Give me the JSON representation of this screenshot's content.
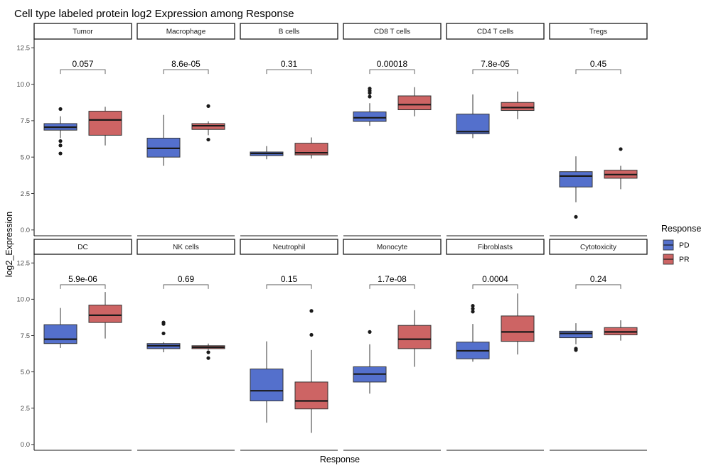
{
  "chart_data": {
    "type": "boxplot",
    "title": "Cell type labeled protein log2 Expression among Response",
    "xlabel": "Response",
    "ylabel": "log2_Expression",
    "ylim": [
      -0.4,
      13.1
    ],
    "yticks": [
      0,
      2.5,
      5,
      7.5,
      10,
      12.5
    ],
    "ytick_labels": [
      "0.0",
      "2.5",
      "5.0",
      "7.5",
      "10.0",
      "12.5"
    ],
    "legend": {
      "title": "Response",
      "position": "right",
      "entries": [
        {
          "name": "PD",
          "color": "#5470cc"
        },
        {
          "name": "PR",
          "color": "#cd6464"
        }
      ]
    },
    "panels": [
      {
        "name": "Tumor",
        "pvalue": "0.057",
        "bracket_y": 11.0,
        "groups": [
          {
            "group": "PD",
            "min": 6.3,
            "q1": 6.85,
            "median": 7.05,
            "q3": 7.3,
            "max": 7.8,
            "outliers": [
              8.3,
              6.1,
              5.8,
              5.25
            ]
          },
          {
            "group": "PR",
            "min": 5.8,
            "q1": 6.5,
            "median": 7.55,
            "q3": 8.15,
            "max": 8.45,
            "outliers": []
          }
        ]
      },
      {
        "name": "Macrophage",
        "pvalue": "8.6e-05",
        "bracket_y": 11.0,
        "groups": [
          {
            "group": "PD",
            "min": 4.4,
            "q1": 5.0,
            "median": 5.6,
            "q3": 6.3,
            "max": 7.9,
            "outliers": []
          },
          {
            "group": "PR",
            "min": 6.5,
            "q1": 6.9,
            "median": 7.15,
            "q3": 7.3,
            "max": 7.45,
            "outliers": [
              8.5,
              6.2
            ]
          }
        ]
      },
      {
        "name": "B cells",
        "pvalue": "0.31",
        "bracket_y": 11.0,
        "groups": [
          {
            "group": "PD",
            "min": 4.85,
            "q1": 5.1,
            "median": 5.25,
            "q3": 5.35,
            "max": 5.75,
            "outliers": []
          },
          {
            "group": "PR",
            "min": 4.9,
            "q1": 5.15,
            "median": 5.3,
            "q3": 5.95,
            "max": 6.35,
            "outliers": []
          }
        ]
      },
      {
        "name": "CD8 T cells",
        "pvalue": "0.00018",
        "bracket_y": 11.0,
        "groups": [
          {
            "group": "PD",
            "min": 7.15,
            "q1": 7.45,
            "median": 7.7,
            "q3": 8.1,
            "max": 8.7,
            "outliers": [
              9.7,
              9.55,
              9.4,
              9.15
            ]
          },
          {
            "group": "PR",
            "min": 7.8,
            "q1": 8.25,
            "median": 8.6,
            "q3": 9.2,
            "max": 9.8,
            "outliers": []
          }
        ]
      },
      {
        "name": "CD4 T cells",
        "pvalue": "7.8e-05",
        "bracket_y": 11.0,
        "groups": [
          {
            "group": "PD",
            "min": 6.3,
            "q1": 6.6,
            "median": 6.75,
            "q3": 7.95,
            "max": 9.3,
            "outliers": []
          },
          {
            "group": "PR",
            "min": 7.6,
            "q1": 8.2,
            "median": 8.4,
            "q3": 8.75,
            "max": 9.5,
            "outliers": []
          }
        ]
      },
      {
        "name": "Tregs",
        "pvalue": "0.45",
        "bracket_y": 11.0,
        "groups": [
          {
            "group": "PD",
            "min": 1.9,
            "q1": 2.95,
            "median": 3.7,
            "q3": 4.0,
            "max": 5.05,
            "outliers": [
              0.9
            ]
          },
          {
            "group": "PR",
            "min": 2.8,
            "q1": 3.55,
            "median": 3.8,
            "q3": 4.1,
            "max": 4.4,
            "outliers": [
              5.55
            ]
          }
        ]
      },
      {
        "name": "DC",
        "pvalue": "5.9e-06",
        "bracket_y": 11.0,
        "groups": [
          {
            "group": "PD",
            "min": 6.65,
            "q1": 6.95,
            "median": 7.25,
            "q3": 8.25,
            "max": 9.4,
            "outliers": []
          },
          {
            "group": "PR",
            "min": 7.3,
            "q1": 8.4,
            "median": 8.9,
            "q3": 9.6,
            "max": 10.5,
            "outliers": []
          }
        ]
      },
      {
        "name": "NK cells",
        "pvalue": "0.69",
        "bracket_y": 11.0,
        "groups": [
          {
            "group": "PD",
            "min": 6.35,
            "q1": 6.6,
            "median": 6.8,
            "q3": 6.95,
            "max": 7.05,
            "outliers": [
              8.4,
              8.3,
              7.65
            ]
          },
          {
            "group": "PR",
            "min": 6.5,
            "q1": 6.6,
            "median": 6.7,
            "q3": 6.8,
            "max": 6.95,
            "outliers": [
              6.35,
              5.95
            ]
          }
        ]
      },
      {
        "name": "Neutrophil",
        "pvalue": "0.15",
        "bracket_y": 11.0,
        "groups": [
          {
            "group": "PD",
            "min": 1.5,
            "q1": 3.0,
            "median": 3.7,
            "q3": 5.2,
            "max": 7.1,
            "outliers": []
          },
          {
            "group": "PR",
            "min": 0.8,
            "q1": 2.45,
            "median": 3.0,
            "q3": 4.3,
            "max": 6.5,
            "outliers": [
              9.2,
              7.55
            ]
          }
        ]
      },
      {
        "name": "Monocyte",
        "pvalue": "1.7e-08",
        "bracket_y": 11.0,
        "groups": [
          {
            "group": "PD",
            "min": 3.5,
            "q1": 4.3,
            "median": 4.85,
            "q3": 5.35,
            "max": 6.9,
            "outliers": [
              7.75
            ]
          },
          {
            "group": "PR",
            "min": 5.35,
            "q1": 6.6,
            "median": 7.25,
            "q3": 8.2,
            "max": 9.25,
            "outliers": []
          }
        ]
      },
      {
        "name": "Fibroblasts",
        "pvalue": "0.0004",
        "bracket_y": 11.0,
        "groups": [
          {
            "group": "PD",
            "min": 5.7,
            "q1": 5.9,
            "median": 6.45,
            "q3": 7.05,
            "max": 8.3,
            "outliers": [
              9.55,
              9.35,
              9.15
            ]
          },
          {
            "group": "PR",
            "min": 6.2,
            "q1": 7.1,
            "median": 7.75,
            "q3": 8.85,
            "max": 10.4,
            "outliers": []
          }
        ]
      },
      {
        "name": "Cytotoxicity",
        "pvalue": "0.24",
        "bracket_y": 11.0,
        "groups": [
          {
            "group": "PD",
            "min": 6.9,
            "q1": 7.35,
            "median": 7.65,
            "q3": 7.8,
            "max": 8.35,
            "outliers": [
              6.6,
              6.5
            ]
          },
          {
            "group": "PR",
            "min": 7.15,
            "q1": 7.55,
            "median": 7.75,
            "q3": 8.05,
            "max": 8.55,
            "outliers": []
          }
        ]
      }
    ]
  }
}
